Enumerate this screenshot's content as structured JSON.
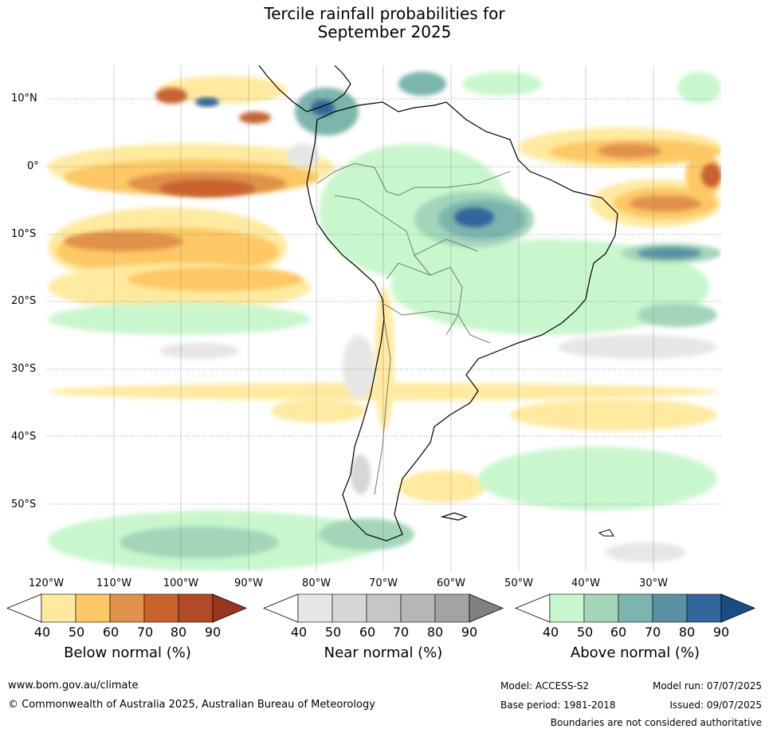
{
  "title": {
    "line1": "Tercile rainfall probabilities for",
    "line2": "September 2025"
  },
  "map": {
    "lat_labels": [
      "10°N",
      "0°",
      "10°S",
      "20°S",
      "30°S",
      "40°S",
      "50°S"
    ],
    "lon_labels": [
      "120°W",
      "110°W",
      "100°W",
      "90°W",
      "80°W",
      "70°W",
      "60°W",
      "50°W",
      "40°W",
      "30°W"
    ],
    "lat_range": [
      -60,
      15
    ],
    "lon_range": [
      -120,
      -20
    ],
    "gridlines": "dotted"
  },
  "legends": [
    {
      "title": "Below normal (%)",
      "ticks": [
        "40",
        "50",
        "60",
        "70",
        "80",
        "90"
      ],
      "colors": [
        "#ffffff",
        "#ffeaa0",
        "#fdc865",
        "#e0924b",
        "#c9622f",
        "#b04a28",
        "#9a3520"
      ]
    },
    {
      "title": "Near normal (%)",
      "ticks": [
        "40",
        "50",
        "60",
        "70",
        "80",
        "90"
      ],
      "colors": [
        "#ffffff",
        "#e6e6e6",
        "#d6d6d6",
        "#c6c6c6",
        "#b6b6b6",
        "#a3a3a3",
        "#808080"
      ]
    },
    {
      "title": "Above normal (%)",
      "ticks": [
        "40",
        "50",
        "60",
        "70",
        "80",
        "90"
      ],
      "colors": [
        "#ffffff",
        "#c9f7cd",
        "#a3d6b9",
        "#7cb5ad",
        "#5a91a0",
        "#33669a",
        "#174f84"
      ]
    }
  ],
  "footer": {
    "url": "www.bom.gov.au/climate",
    "copyright": "© Commonwealth of Australia 2025, Australian Bureau of Meteorology",
    "model": "Model: ACCESS-S2",
    "base_period": "Base period: 1981-2018",
    "model_run": "Model run: 07/07/2025",
    "issued": "Issued: 09/07/2025",
    "disclaimer": "Boundaries are not considered authoritative"
  }
}
